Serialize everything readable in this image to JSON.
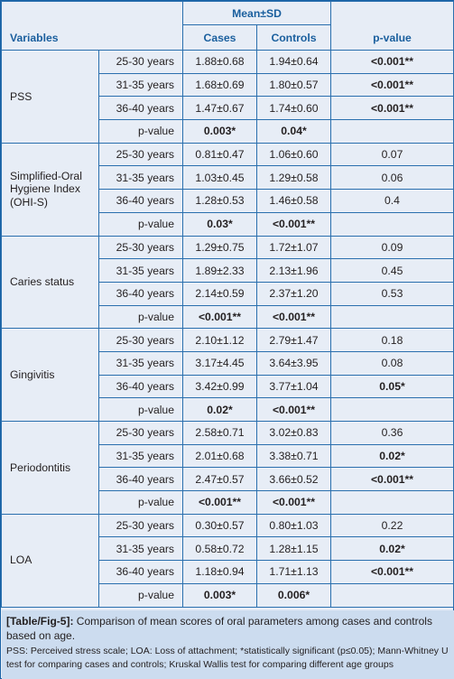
{
  "header": {
    "group_label": "Mean±SD",
    "variables": "Variables",
    "cases": "Cases",
    "controls": "Controls",
    "pvalue": "p-value"
  },
  "groups": [
    {
      "name": "PSS",
      "rows": [
        {
          "age": "25-30 years",
          "cases": "1.88±0.68",
          "controls": "1.94±0.64",
          "p": "<0.001**",
          "p_bold": true
        },
        {
          "age": "31-35 years",
          "cases": "1.68±0.69",
          "controls": "1.80±0.57",
          "p": "<0.001**",
          "p_bold": true
        },
        {
          "age": "36-40 years",
          "cases": "1.47±0.67",
          "controls": "1.74±0.60",
          "p": "<0.001**",
          "p_bold": true
        }
      ],
      "pvalue_row": {
        "label": "p-value",
        "cases": "0.003*",
        "controls": "0.04*"
      }
    },
    {
      "name": "Simplified-Oral Hygiene Index (OHI-S)",
      "rows": [
        {
          "age": "25-30 years",
          "cases": "0.81±0.47",
          "controls": "1.06±0.60",
          "p": "0.07",
          "p_bold": false
        },
        {
          "age": "31-35 years",
          "cases": "1.03±0.45",
          "controls": "1.29±0.58",
          "p": "0.06",
          "p_bold": false
        },
        {
          "age": "36-40 years",
          "cases": "1.28±0.53",
          "controls": "1.46±0.58",
          "p": "0.4",
          "p_bold": false
        }
      ],
      "pvalue_row": {
        "label": "p-value",
        "cases": "0.03*",
        "controls": "<0.001**"
      }
    },
    {
      "name": "Caries status",
      "rows": [
        {
          "age": "25-30 years",
          "cases": "1.29±0.75",
          "controls": "1.72±1.07",
          "p": "0.09",
          "p_bold": false
        },
        {
          "age": "31-35 years",
          "cases": "1.89±2.33",
          "controls": "2.13±1.96",
          "p": "0.45",
          "p_bold": false
        },
        {
          "age": "36-40 years",
          "cases": "2.14±0.59",
          "controls": "2.37±1.20",
          "p": "0.53",
          "p_bold": false
        }
      ],
      "pvalue_row": {
        "label": "p-value",
        "cases": "<0.001**",
        "controls": "<0.001**"
      }
    },
    {
      "name": "Gingivitis",
      "rows": [
        {
          "age": "25-30 years",
          "cases": "2.10±1.12",
          "controls": "2.79±1.47",
          "p": "0.18",
          "p_bold": false
        },
        {
          "age": "31-35 years",
          "cases": "3.17±4.45",
          "controls": "3.64±3.95",
          "p": "0.08",
          "p_bold": false
        },
        {
          "age": "36-40 years",
          "cases": "3.42±0.99",
          "controls": "3.77±1.04",
          "p": "0.05*",
          "p_bold": true
        }
      ],
      "pvalue_row": {
        "label": "p-value",
        "cases": "0.02*",
        "controls": "<0.001**"
      }
    },
    {
      "name": "Periodontitis",
      "rows": [
        {
          "age": "25-30 years",
          "cases": "2.58±0.71",
          "controls": "3.02±0.83",
          "p": "0.36",
          "p_bold": false
        },
        {
          "age": "31-35 years",
          "cases": "2.01±0.68",
          "controls": "3.38±0.71",
          "p": "0.02*",
          "p_bold": true
        },
        {
          "age": "36-40 years",
          "cases": "2.47±0.57",
          "controls": "3.66±0.52",
          "p": "<0.001**",
          "p_bold": true
        }
      ],
      "pvalue_row": {
        "label": "p-value",
        "cases": "<0.001**",
        "controls": "<0.001**"
      }
    },
    {
      "name": "LOA",
      "rows": [
        {
          "age": "25-30 years",
          "cases": "0.30±0.57",
          "controls": "0.80±1.03",
          "p": "0.22",
          "p_bold": false
        },
        {
          "age": "31-35 years",
          "cases": "0.58±0.72",
          "controls": "1.28±1.15",
          "p": "0.02*",
          "p_bold": true
        },
        {
          "age": "36-40 years",
          "cases": "1.18±0.94",
          "controls": "1.71±1.13",
          "p": "<0.001**",
          "p_bold": true
        }
      ],
      "pvalue_row": {
        "label": "p-value",
        "cases": "0.003*",
        "controls": "0.006*"
      }
    }
  ],
  "caption": {
    "label": "[Table/Fig-5]:",
    "title": " Comparison of mean scores of oral parameters among cases and controls based on age.",
    "notes": "PSS: Perceived stress scale; LOA: Loss of attachment; *statistically significant (p≤0.05); Mann-Whitney U test for comparing cases and controls; Kruskal Wallis test for comparing different age groups"
  },
  "colors": {
    "header_text": "#1a5f9e",
    "border": "#2a6fae",
    "body_bg": "#e7edf6",
    "caption_bg": "#ccdcef"
  }
}
